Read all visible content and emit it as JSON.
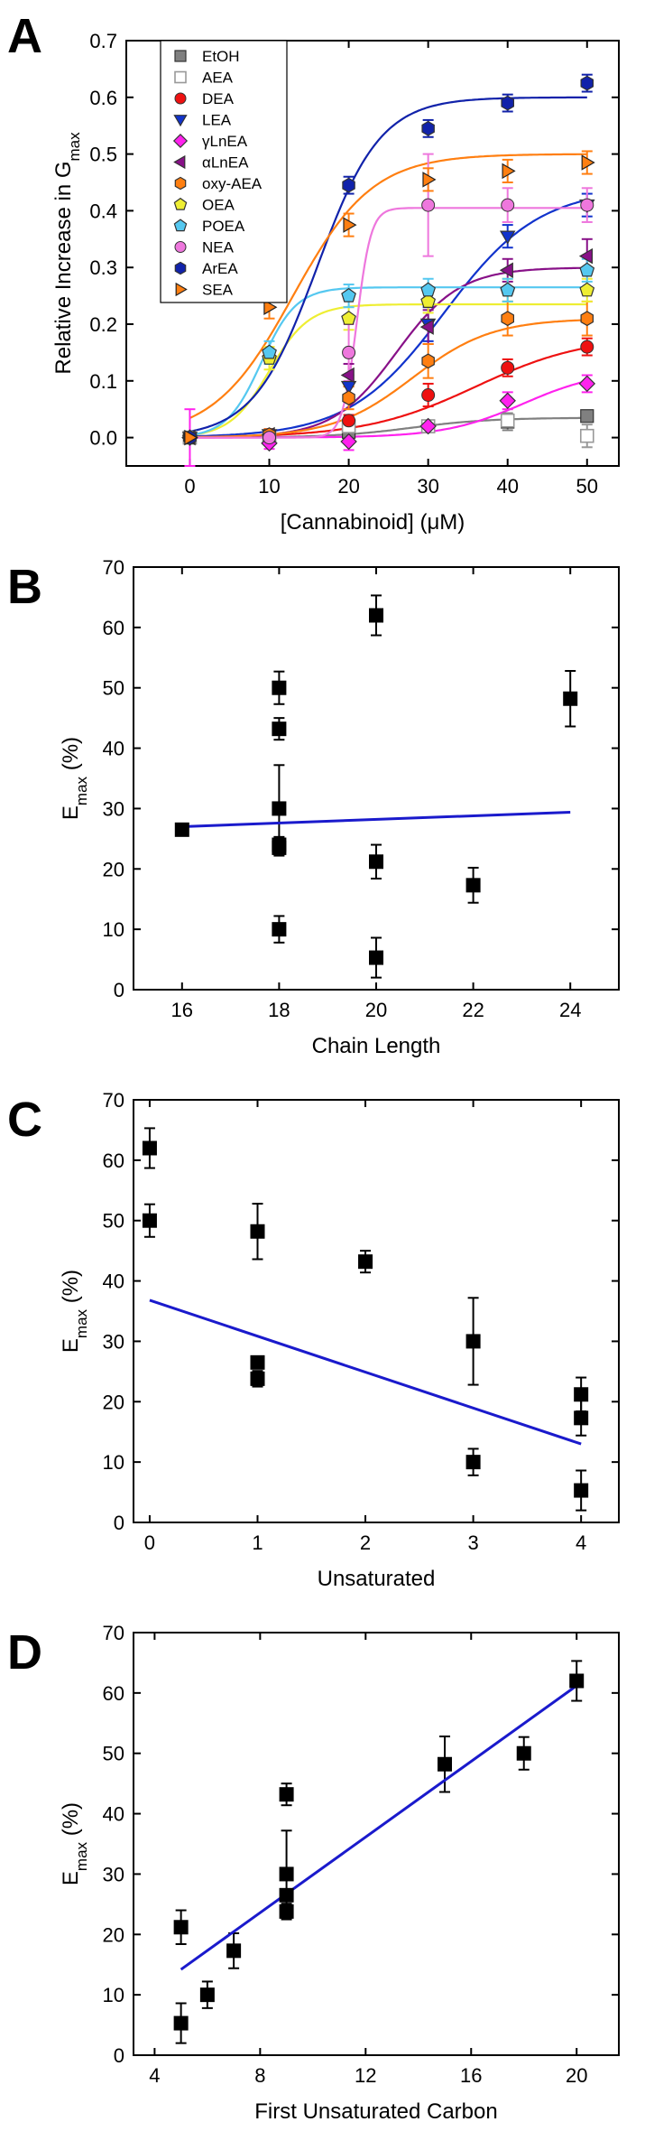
{
  "chart_data": [
    {
      "panel": "A",
      "type": "line",
      "xlabel": "[Cannabinoid] (μM)",
      "ylabel": "Relative Increase in G",
      "ylabel_sub": "max",
      "xlim": [
        -8,
        54
      ],
      "ylim": [
        -0.05,
        0.7
      ],
      "xticks": [
        0,
        10,
        20,
        30,
        40,
        50
      ],
      "yticks": [
        0.0,
        0.1,
        0.2,
        0.3,
        0.4,
        0.5,
        0.6,
        0.7
      ],
      "legend_position": "top-left",
      "series": [
        {
          "name": "EtOH",
          "color": "#808080",
          "marker": "square",
          "open": false,
          "points": [
            [
              0,
              0.0
            ],
            [
              10,
              0.0
            ],
            [
              20,
              0.01
            ],
            [
              30,
              0.02
            ],
            [
              40,
              0.028
            ],
            [
              50,
              0.038
            ]
          ],
          "err": [
            0.01,
            0.01,
            0.01,
            0.01,
            0.015,
            0.01
          ],
          "fit": {
            "bottom": 0.0,
            "top": 0.035,
            "x50": 28,
            "k": 5
          }
        },
        {
          "name": "AEA",
          "color": "#999999",
          "marker": "square",
          "open": true,
          "points": [
            [
              0,
              0.0
            ],
            [
              10,
              0.0
            ],
            [
              20,
              0.02
            ],
            [
              30,
              0.02
            ],
            [
              40,
              0.03
            ],
            [
              50,
              0.003
            ]
          ],
          "err": [
            0.01,
            0.01,
            0.01,
            0.01,
            0.01,
            0.02
          ],
          "fit": null
        },
        {
          "name": "DEA",
          "color": "#ee1111",
          "marker": "circle",
          "open": false,
          "points": [
            [
              0,
              0.0
            ],
            [
              10,
              0.0
            ],
            [
              20,
              0.03
            ],
            [
              30,
              0.075
            ],
            [
              40,
              0.123
            ],
            [
              50,
              0.16
            ]
          ],
          "err": [
            0.01,
            0.01,
            0.01,
            0.02,
            0.015,
            0.015
          ],
          "fit": {
            "bottom": 0.0,
            "top": 0.18,
            "x50": 36,
            "k": 7
          }
        },
        {
          "name": "LEA",
          "color": "#1133cc",
          "marker": "triangle-down",
          "open": false,
          "points": [
            [
              0,
              0.0
            ],
            [
              10,
              0.005
            ],
            [
              20,
              0.09
            ],
            [
              30,
              0.2
            ],
            [
              40,
              0.355
            ],
            [
              50,
              0.41
            ]
          ],
          "err": [
            0.01,
            0.01,
            0.02,
            0.03,
            0.02,
            0.02
          ],
          "fit": {
            "bottom": 0.0,
            "top": 0.44,
            "x50": 32,
            "k": 6
          }
        },
        {
          "name": "γLnEA",
          "color": "#ff22ee",
          "marker": "diamond",
          "open": false,
          "points": [
            [
              0,
              0.0
            ],
            [
              10,
              -0.01
            ],
            [
              20,
              -0.007
            ],
            [
              30,
              0.02
            ],
            [
              40,
              0.065
            ],
            [
              50,
              0.095
            ]
          ],
          "err": [
            0.05,
            0.01,
            0.015,
            0.01,
            0.015,
            0.015
          ],
          "fit": {
            "bottom": 0.0,
            "top": 0.12,
            "x50": 42,
            "k": 5
          }
        },
        {
          "name": "αLnEA",
          "color": "#881188",
          "marker": "triangle-left",
          "open": false,
          "points": [
            [
              0,
              0.0
            ],
            [
              10,
              0.005
            ],
            [
              20,
              0.11
            ],
            [
              30,
              0.195
            ],
            [
              40,
              0.295
            ],
            [
              50,
              0.32
            ]
          ],
          "err": [
            0.01,
            0.01,
            0.02,
            0.03,
            0.02,
            0.03
          ],
          "fit": {
            "bottom": 0.0,
            "top": 0.3,
            "x50": 26,
            "k": 4
          }
        },
        {
          "name": "oxy-AEA",
          "color": "#ff7f11",
          "marker": "hexagon",
          "open": false,
          "points": [
            [
              0,
              0.0
            ],
            [
              10,
              0.005
            ],
            [
              20,
              0.07
            ],
            [
              30,
              0.135
            ],
            [
              40,
              0.21
            ],
            [
              50,
              0.21
            ]
          ],
          "err": [
            0.01,
            0.01,
            0.02,
            0.03,
            0.03,
            0.03
          ],
          "fit": {
            "bottom": 0.0,
            "top": 0.21,
            "x50": 28,
            "k": 5
          }
        },
        {
          "name": "OEA",
          "color": "#eeee33",
          "marker": "pentagon",
          "open": false,
          "points": [
            [
              0,
              0.0
            ],
            [
              10,
              0.14
            ],
            [
              20,
              0.21
            ],
            [
              30,
              0.24
            ],
            [
              40,
              0.26
            ],
            [
              50,
              0.26
            ]
          ],
          "err": [
            0.01,
            0.02,
            0.02,
            0.02,
            0.02,
            0.02
          ],
          "fit": {
            "bottom": 0.0,
            "top": 0.235,
            "x50": 10,
            "k": 2.5
          }
        },
        {
          "name": "POEA",
          "color": "#55c8f0",
          "marker": "pentagon",
          "open": false,
          "points": [
            [
              0,
              0.0
            ],
            [
              10,
              0.15
            ],
            [
              20,
              0.25
            ],
            [
              30,
              0.26
            ],
            [
              40,
              0.26
            ],
            [
              50,
              0.295
            ]
          ],
          "err": [
            0.01,
            0.02,
            0.02,
            0.02,
            0.02,
            0.02
          ],
          "fit": {
            "bottom": 0.0,
            "top": 0.265,
            "x50": 9,
            "k": 2.2
          }
        },
        {
          "name": "NEA",
          "color": "#ee77dd",
          "marker": "circle",
          "open": false,
          "points": [
            [
              0,
              0.0
            ],
            [
              10,
              0.0
            ],
            [
              20,
              0.15
            ],
            [
              30,
              0.41
            ],
            [
              40,
              0.41
            ],
            [
              50,
              0.41
            ]
          ],
          "err": [
            0.01,
            0.01,
            0.05,
            0.09,
            0.03,
            0.03
          ],
          "fit": {
            "bottom": 0.0,
            "top": 0.405,
            "x50": 21,
            "k": 0.9
          }
        },
        {
          "name": "ArEA",
          "color": "#1122aa",
          "marker": "hexagon",
          "open": false,
          "points": [
            [
              0,
              0.0
            ],
            [
              10,
              0.26
            ],
            [
              20,
              0.445
            ],
            [
              30,
              0.545
            ],
            [
              40,
              0.59
            ],
            [
              50,
              0.625
            ]
          ],
          "err": [
            0.01,
            0.015,
            0.015,
            0.015,
            0.015,
            0.015
          ],
          "fit": {
            "bottom": 0.0,
            "top": 0.6,
            "x50": 16,
            "k": 4
          }
        },
        {
          "name": "SEA",
          "color": "#ff7f11",
          "marker": "triangle-right",
          "open": false,
          "points": [
            [
              0,
              0.0
            ],
            [
              10,
              0.23
            ],
            [
              20,
              0.375
            ],
            [
              30,
              0.455
            ],
            [
              40,
              0.47
            ],
            [
              50,
              0.485
            ]
          ],
          "err": [
            0.01,
            0.02,
            0.02,
            0.02,
            0.02,
            0.02
          ],
          "fit": {
            "bottom": 0.0,
            "top": 0.5,
            "x50": 13,
            "k": 5
          }
        }
      ]
    },
    {
      "panel": "B",
      "type": "scatter",
      "xlabel": "Chain Length",
      "ylabel": "E",
      "ylabel_sub": "max",
      "ylabel_suffix": " (%)",
      "xlim": [
        15,
        25
      ],
      "ylim": [
        0,
        70
      ],
      "xticks": [
        16,
        18,
        20,
        22,
        24
      ],
      "yticks": [
        0,
        10,
        20,
        30,
        40,
        50,
        60,
        70
      ],
      "points": [
        [
          16,
          26.5
        ],
        [
          18,
          50
        ],
        [
          18,
          43.2
        ],
        [
          18,
          30
        ],
        [
          18,
          23.5
        ],
        [
          18,
          24
        ],
        [
          18,
          10
        ],
        [
          20,
          62
        ],
        [
          20,
          21.2
        ],
        [
          20,
          5.3
        ],
        [
          22,
          17.3
        ],
        [
          24,
          48.2
        ]
      ],
      "err": [
        1,
        2.7,
        1.8,
        7.2,
        1.3,
        1.3,
        2.2,
        3.3,
        2.8,
        3.3,
        2.9,
        4.6
      ],
      "fit_line": [
        [
          16,
          27.0
        ],
        [
          24,
          29.4
        ]
      ]
    },
    {
      "panel": "C",
      "type": "scatter",
      "xlabel": "Unsaturated",
      "ylabel": "E",
      "ylabel_sub": "max",
      "ylabel_suffix": " (%)",
      "xlim": [
        -0.15,
        4.35
      ],
      "ylim": [
        0,
        70
      ],
      "xticks": [
        0,
        1,
        2,
        3,
        4
      ],
      "yticks": [
        0,
        10,
        20,
        30,
        40,
        50,
        60,
        70
      ],
      "points": [
        [
          0,
          62
        ],
        [
          0,
          50
        ],
        [
          1,
          48.2
        ],
        [
          1,
          26.5
        ],
        [
          1,
          23.8
        ],
        [
          2,
          43.2
        ],
        [
          3,
          30
        ],
        [
          3,
          10
        ],
        [
          4,
          21.2
        ],
        [
          4,
          17.3
        ],
        [
          4,
          5.3
        ]
      ],
      "err": [
        3.3,
        2.7,
        4.6,
        1,
        1.3,
        1.8,
        7.2,
        2.2,
        2.8,
        2.9,
        3.3
      ],
      "fit_line": [
        [
          0,
          36.8
        ],
        [
          4,
          13.0
        ]
      ]
    },
    {
      "panel": "D",
      "type": "scatter",
      "xlabel": "First Unsaturated Carbon",
      "ylabel": "E",
      "ylabel_sub": "max",
      "ylabel_suffix": " (%)",
      "xlim": [
        3.2,
        21.6
      ],
      "ylim": [
        0,
        70
      ],
      "xticks": [
        4,
        8,
        12,
        16,
        20
      ],
      "yticks": [
        0,
        10,
        20,
        30,
        40,
        50,
        60,
        70
      ],
      "points": [
        [
          5,
          21.2
        ],
        [
          5,
          5.3
        ],
        [
          6,
          10
        ],
        [
          7,
          17.3
        ],
        [
          9,
          43.2
        ],
        [
          9,
          30
        ],
        [
          9,
          26.5
        ],
        [
          9,
          23.8
        ],
        [
          15,
          48.2
        ],
        [
          18,
          50
        ],
        [
          20,
          62
        ]
      ],
      "err": [
        2.8,
        3.3,
        2.2,
        2.9,
        1.8,
        7.2,
        1,
        1.3,
        4.6,
        2.7,
        3.3
      ],
      "fit_line": [
        [
          5,
          14.2
        ],
        [
          20,
          61.2
        ]
      ]
    }
  ]
}
